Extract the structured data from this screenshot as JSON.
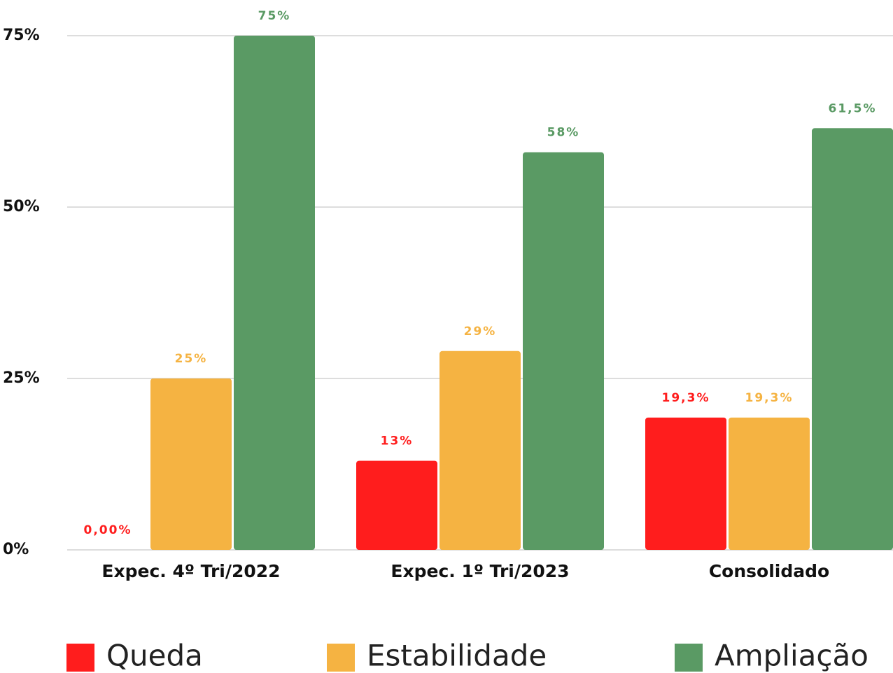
{
  "chart_data": {
    "type": "bar",
    "categories": [
      "Expec. 4º Tri/2022",
      "Expec. 1º Tri/2023",
      "Consolidado"
    ],
    "series": [
      {
        "name": "Queda",
        "color": "#ff1d1d",
        "values": [
          0,
          13,
          19.3
        ],
        "value_labels": [
          "0,00%",
          "13%",
          "19,3%"
        ]
      },
      {
        "name": "Estabilidade",
        "color": "#f5b342",
        "values": [
          25,
          29,
          19.3
        ],
        "value_labels": [
          "25%",
          "29%",
          "19,3%"
        ]
      },
      {
        "name": "Ampliação",
        "color": "#5a9a64",
        "values": [
          75,
          58,
          61.5
        ],
        "value_labels": [
          "75%",
          "58%",
          "61,5%"
        ]
      }
    ],
    "ylim": [
      0,
      75
    ],
    "yticks": [
      {
        "value": 0,
        "label": "0%"
      },
      {
        "value": 25,
        "label": "25%"
      },
      {
        "value": 50,
        "label": "50%"
      },
      {
        "value": 75,
        "label": "75%"
      }
    ],
    "grid": true,
    "legend": "bottom"
  }
}
